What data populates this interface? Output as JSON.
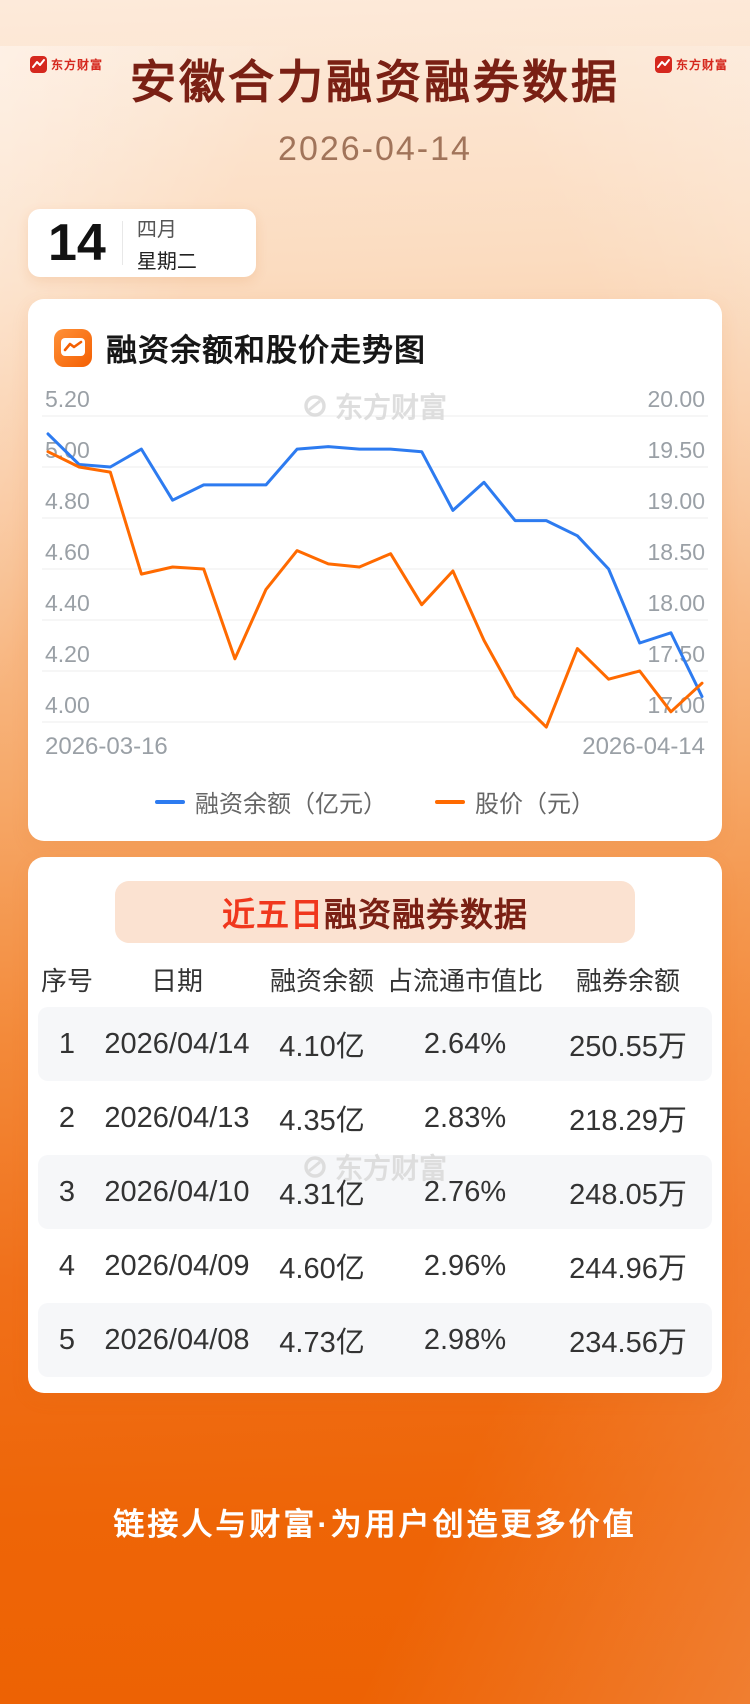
{
  "page": {
    "title": "安徽合力融资融券数据",
    "date": "2026-04-14",
    "brand": "东方财富",
    "footer": "链接人与财富·为用户创造更多价值"
  },
  "calendar": {
    "day": "14",
    "month": "四月",
    "weekday": "星期二"
  },
  "chart_card": {
    "title": "融资余额和股价走势图",
    "watermark": "东方财富"
  },
  "chart_data": {
    "type": "line",
    "title": "融资余额和股价走势图",
    "x_start_label": "2026-03-16",
    "x_end_label": "2026-04-14",
    "grid": true,
    "legend_position": "bottom",
    "left_axis": {
      "ticks": [
        "5.20",
        "5.00",
        "4.80",
        "4.60",
        "4.40",
        "4.20",
        "4.00"
      ],
      "min": 4.0,
      "max": 5.2
    },
    "right_axis": {
      "ticks": [
        "20.00",
        "19.50",
        "19.00",
        "18.50",
        "18.00",
        "17.50",
        "17.00"
      ],
      "min": 17.0,
      "max": 20.0
    },
    "series": [
      {
        "name": "融资余额（亿元）",
        "axis": "left",
        "color": "#2d7bf0",
        "values": [
          5.13,
          5.01,
          5.0,
          5.07,
          4.87,
          4.93,
          4.93,
          4.93,
          5.07,
          5.08,
          5.07,
          5.07,
          5.06,
          4.83,
          4.94,
          4.79,
          4.79,
          4.73,
          4.6,
          4.31,
          4.35,
          4.1
        ]
      },
      {
        "name": "股价（元）",
        "axis": "right",
        "color": "#ff6a00",
        "values": [
          19.65,
          19.5,
          19.45,
          18.45,
          18.52,
          18.5,
          17.62,
          18.3,
          18.68,
          18.55,
          18.52,
          18.65,
          18.15,
          18.48,
          17.8,
          17.25,
          16.95,
          17.72,
          17.42,
          17.5,
          17.1,
          17.38
        ]
      }
    ]
  },
  "table_card": {
    "title_highlight": "近五日",
    "title_rest": "融资融券数据",
    "watermark": "东方财富",
    "columns": [
      "序号",
      "日期",
      "融资余额",
      "占流通市值比",
      "融券余额"
    ],
    "rows": [
      [
        "1",
        "2026/04/14",
        "4.10亿",
        "2.64%",
        "250.55万"
      ],
      [
        "2",
        "2026/04/13",
        "4.35亿",
        "2.83%",
        "218.29万"
      ],
      [
        "3",
        "2026/04/10",
        "4.31亿",
        "2.76%",
        "248.05万"
      ],
      [
        "4",
        "2026/04/09",
        "4.60亿",
        "2.96%",
        "244.96万"
      ],
      [
        "5",
        "2026/04/08",
        "4.73亿",
        "2.98%",
        "234.56万"
      ]
    ]
  },
  "colors": {
    "accent": "#f0701a",
    "line_blue": "#2d7bf0",
    "line_orange": "#ff6a00",
    "title_maroon": "#7a2014",
    "highlight_red": "#f0371d"
  }
}
